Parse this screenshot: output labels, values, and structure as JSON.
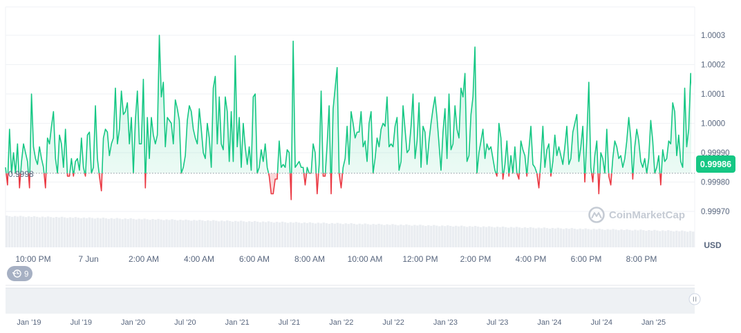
{
  "chart_data": {
    "type": "area",
    "baseline": 0.99983,
    "ylim": [
      0.99965,
      1.00035
    ],
    "ylabel": "USD",
    "y_ticks": [
      {
        "value": 1.0003,
        "label": "1.0003"
      },
      {
        "value": 1.0002,
        "label": "1.0002"
      },
      {
        "value": 1.0001,
        "label": "1.0001"
      },
      {
        "value": 1.0,
        "label": "1.0000"
      },
      {
        "value": 0.9999,
        "label": "0.99990"
      },
      {
        "value": 0.9998,
        "label": "0.99980"
      },
      {
        "value": 0.9997,
        "label": "0.99970"
      }
    ],
    "x_ticks": [
      "10:00 PM",
      "7 Jun",
      "2:00 AM",
      "4:00 AM",
      "6:00 AM",
      "8:00 AM",
      "10:00 AM",
      "12:00 PM",
      "2:00 PM",
      "4:00 PM",
      "6:00 PM",
      "8:00 PM"
    ],
    "baseline_label": "0.9998",
    "current_price": "0.99986",
    "values": [
      0.99985,
      0.99979,
      0.99998,
      0.99983,
      0.9999,
      0.99983,
      0.99993,
      0.99978,
      0.99987,
      0.99993,
      0.9999,
      0.99987,
      0.99978,
      1.0001,
      0.99992,
      0.99988,
      0.99986,
      0.99992,
      0.99988,
      0.99985,
      0.99978,
      0.99995,
      0.99993,
      0.99999,
      1.00004,
      0.99988,
      0.99983,
      0.99996,
      0.99993,
      0.99985,
      0.99998,
      0.99982,
      0.99982,
      0.99988,
      0.99982,
      0.99987,
      0.99988,
      0.99984,
      0.99995,
      0.99985,
      0.99982,
      0.99996,
      0.99997,
      0.99983,
      0.99985,
      1.00006,
      0.99988,
      0.99982,
      0.99977,
      0.99995,
      0.99998,
      0.99997,
      0.99989,
      0.99993,
      0.99995,
      1.00012,
      0.99993,
      0.99998,
      1.00011,
      1.00003,
      1.00004,
      1.00007,
      0.99993,
      1.00002,
      0.99983,
      1.00001,
      1.00011,
      0.99993,
      0.99993,
      1.00015,
      0.99978,
      1.00002,
      0.99988,
      1.00002,
      0.99996,
      0.99993,
      0.99996,
      1.0003,
      1.00009,
      1.00014,
      0.99992,
      1.00002,
      1.00001,
      1.0,
      0.99993,
      1.00008,
      1.00005,
      1.00001,
      0.99983,
      0.99985,
      0.99989,
      1.00001,
      1.00006,
      1.00004,
      0.99998,
      0.99995,
      0.99993,
      1.00005,
      0.99998,
      0.9999,
      0.99988,
      1.0,
      0.99995,
      0.99985,
      1.00012,
      1.00016,
      0.99993,
      1.00009,
      0.99993,
      0.99991,
      1.00009,
      1.00004,
      0.99987,
      1.00004,
      0.99987,
      1.00023,
      0.99992,
      1.00002,
      0.99985,
      1.0,
      0.99992,
      0.99986,
      0.99992,
      0.99984,
      1.00009,
      1.0001,
      0.99983,
      0.99985,
      0.99991,
      0.99987,
      0.99993,
      0.99985,
      0.99982,
      0.99976,
      0.99976,
      0.99981,
      0.99981,
      0.99994,
      0.99985,
      0.99986,
      0.99985,
      0.99991,
      0.9999,
      0.99974,
      1.00028,
      0.99985,
      0.99986,
      0.99987,
      0.99985,
      0.99985,
      0.99979,
      0.99985,
      0.99983,
      0.99983,
      0.99993,
      0.9999,
      0.99976,
      0.99986,
      1.00011,
      0.99982,
      0.99982,
      0.99993,
      1.00006,
      0.99976,
      1.00005,
      1.00012,
      1.00019,
      0.99983,
      0.99978,
      0.99985,
      0.99988,
      0.99999,
      0.99986,
      1.00004,
      1.0,
      0.99995,
      0.99997,
      0.99997,
      1.00004,
      0.99992,
      0.99994,
      0.99987,
      1.0,
      1.00004,
      0.99983,
      0.99988,
      0.99995,
      0.99992,
      0.99998,
      1.0,
      0.99999,
      1.00009,
      0.99992,
      0.99993,
      0.99992,
      0.99999,
      1.00002,
      0.99984,
      0.99987,
      1.00006,
      0.99998,
      0.9999,
      0.99991,
      0.99999,
      1.0001,
      0.99988,
      0.99994,
      1.00007,
      0.99985,
      0.99999,
      0.99997,
      0.99986,
      0.99994,
      1.0,
      1.00005,
      1.00009,
      1.00002,
      0.99993,
      0.99984,
      0.99997,
      1.00005,
      0.99988,
      1.0001,
      0.99991,
      0.99993,
      1.00006,
      0.99998,
      0.99995,
      1.00012,
      1.00009,
      1.00017,
      0.99987,
      0.99989,
      1.00003,
      1.00009,
      1.00026,
      0.99983,
      0.9999,
      0.99994,
      0.99998,
      0.99988,
      0.99993,
      0.99991,
      0.99992,
      0.99988,
      0.99984,
      0.99982,
      1.0,
      0.99995,
      0.99981,
      0.99986,
      0.99994,
      0.99982,
      0.99989,
      0.99983,
      0.99992,
      0.99983,
      0.99981,
      0.99994,
      0.99991,
      0.99989,
      0.99982,
      0.99991,
      0.99999,
      0.99986,
      0.99985,
      0.99983,
      0.99978,
      0.99987,
      0.99999,
      0.99985,
      0.99991,
      0.99993,
      0.99982,
      0.99987,
      0.99996,
      0.99989,
      0.99992,
      0.99989,
      0.99986,
      0.99992,
      0.99999,
      0.99986,
      0.99988,
      0.99997,
      1.0,
      1.00003,
      0.99987,
      0.99992,
      0.99999,
      0.9998,
      0.99995,
      1.00014,
      0.99985,
      0.9998,
      0.99989,
      0.99994,
      0.99976,
      0.9999,
      0.99988,
      0.99983,
      0.99998,
      0.99982,
      0.99979,
      0.99988,
      0.99994,
      0.99992,
      0.99988,
      0.99989,
      0.99985,
      0.99988,
      0.99994,
      1.00002,
      0.99995,
      0.99981,
      0.99992,
      0.99998,
      0.99994,
      0.99987,
      0.99985,
      0.99988,
      0.99983,
      0.99988,
      1.00001,
      0.99994,
      0.99983,
      0.99985,
      0.99989,
      0.99979,
      0.99991,
      0.99987,
      0.99988,
      0.99994,
      0.99993,
      1.00007,
      1.00004,
      0.99989,
      0.99996,
      0.99987,
      0.99985,
      1.00012,
      0.99992,
      0.99998,
      1.00017,
      1.00009,
      0.99993
    ]
  },
  "watermark": "CoinMarketCap",
  "history_badge": {
    "count": "9",
    "icon": "history-icon"
  },
  "navigator": {
    "x_ticks": [
      "Jan '19",
      "Jul '19",
      "Jan '20",
      "Jul '20",
      "Jan '21",
      "Jul '21",
      "Jan '22",
      "Jul '22",
      "Jan '23",
      "Jul '23",
      "Jan '24",
      "Jul '24",
      "Jan '25"
    ]
  },
  "colors": {
    "up": "#16c784",
    "down": "#ea3943",
    "grid": "#eff2f5",
    "text": "#58667e",
    "badge_bg": "#16c784"
  }
}
